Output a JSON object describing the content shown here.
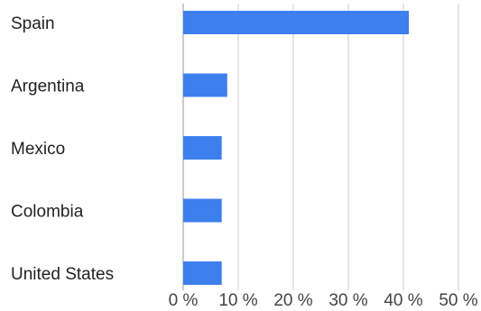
{
  "chart_data": {
    "type": "bar",
    "orientation": "horizontal",
    "categories": [
      "Spain",
      "Argentina",
      "Mexico",
      "Colombia",
      "United States"
    ],
    "values": [
      41,
      8,
      7,
      7,
      7
    ],
    "xlim": [
      0,
      50
    ],
    "ticks": [
      0,
      10,
      20,
      30,
      40,
      50
    ],
    "tick_labels": [
      "0 %",
      "10 %",
      "20 %",
      "30 %",
      "40 %",
      "50 %"
    ],
    "bar_color": "#3d7fed",
    "grid": true
  }
}
